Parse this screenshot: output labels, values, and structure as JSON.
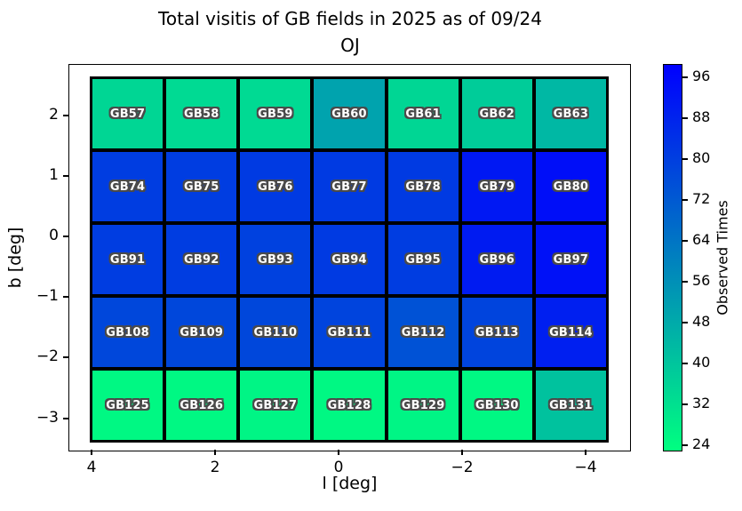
{
  "chart_data": {
    "type": "heatmap",
    "title": "Total visitis of GB fields in 2025 as of 09/24",
    "subtitle": "OJ",
    "xlabel": "l [deg]",
    "ylabel": "b [deg]",
    "x_tick_labels": [
      "4",
      "2",
      "0",
      "−2",
      "−4"
    ],
    "y_tick_labels": [
      "2",
      "1",
      "0",
      "−1",
      "−2",
      "−3"
    ],
    "grid_shape": {
      "rows": 5,
      "cols": 7
    },
    "colorbar": {
      "label": "Observed Times",
      "tick_labels": [
        "96",
        "88",
        "80",
        "72",
        "64",
        "56",
        "48",
        "40",
        "32",
        "24"
      ],
      "vmin": 23,
      "vmax": 98,
      "colormap": "winter_r (green = low, blue = high)",
      "gradient_stops_bottom_to_top": [
        "#00FF80",
        "#00BFA0",
        "#0080BF",
        "#0040DF",
        "#0000FF"
      ]
    },
    "cells_note": "values estimated from cell colors against the colorbar scale",
    "rows": [
      [
        {
          "label": "GB57",
          "value": 35,
          "color": "#00D694"
        },
        {
          "label": "GB58",
          "value": 34,
          "color": "#00DA93"
        },
        {
          "label": "GB59",
          "value": 34,
          "color": "#00DA93"
        },
        {
          "label": "GB60",
          "value": 50,
          "color": "#00A3AE"
        },
        {
          "label": "GB61",
          "value": 35,
          "color": "#00D694"
        },
        {
          "label": "GB62",
          "value": 38,
          "color": "#00CC99"
        },
        {
          "label": "GB63",
          "value": 44,
          "color": "#00B8A4"
        }
      ],
      [
        {
          "label": "GB74",
          "value": 80,
          "color": "#003DE1"
        },
        {
          "label": "GB75",
          "value": 80,
          "color": "#003DE1"
        },
        {
          "label": "GB76",
          "value": 81,
          "color": "#003AE2"
        },
        {
          "label": "GB77",
          "value": 81,
          "color": "#003AE2"
        },
        {
          "label": "GB78",
          "value": 81,
          "color": "#003AE2"
        },
        {
          "label": "GB79",
          "value": 91,
          "color": "#0018F3"
        },
        {
          "label": "GB80",
          "value": 94,
          "color": "#000EF8"
        }
      ],
      [
        {
          "label": "GB91",
          "value": 80,
          "color": "#003DE1"
        },
        {
          "label": "GB92",
          "value": 80,
          "color": "#003DE1"
        },
        {
          "label": "GB93",
          "value": 79,
          "color": "#0041DF"
        },
        {
          "label": "GB94",
          "value": 81,
          "color": "#003AE2"
        },
        {
          "label": "GB95",
          "value": 80,
          "color": "#003DE1"
        },
        {
          "label": "GB96",
          "value": 90,
          "color": "#001BF1"
        },
        {
          "label": "GB97",
          "value": 93,
          "color": "#0011F7"
        }
      ],
      [
        {
          "label": "GB108",
          "value": 77,
          "color": "#0047DB"
        },
        {
          "label": "GB109",
          "value": 77,
          "color": "#0047DB"
        },
        {
          "label": "GB110",
          "value": 77,
          "color": "#0047DB"
        },
        {
          "label": "GB111",
          "value": 78,
          "color": "#0044DD"
        },
        {
          "label": "GB112",
          "value": 74,
          "color": "#0052D6"
        },
        {
          "label": "GB113",
          "value": 78,
          "color": "#0044DD"
        },
        {
          "label": "GB114",
          "value": 89,
          "color": "#001FF0"
        }
      ],
      [
        {
          "label": "GB125",
          "value": 25,
          "color": "#00F883"
        },
        {
          "label": "GB126",
          "value": 25,
          "color": "#00F883"
        },
        {
          "label": "GB127",
          "value": 26,
          "color": "#00F585"
        },
        {
          "label": "GB128",
          "value": 25,
          "color": "#00F883"
        },
        {
          "label": "GB129",
          "value": 26,
          "color": "#00F585"
        },
        {
          "label": "GB130",
          "value": 25,
          "color": "#00F883"
        },
        {
          "label": "GB131",
          "value": 41,
          "color": "#00C29E"
        }
      ]
    ]
  }
}
